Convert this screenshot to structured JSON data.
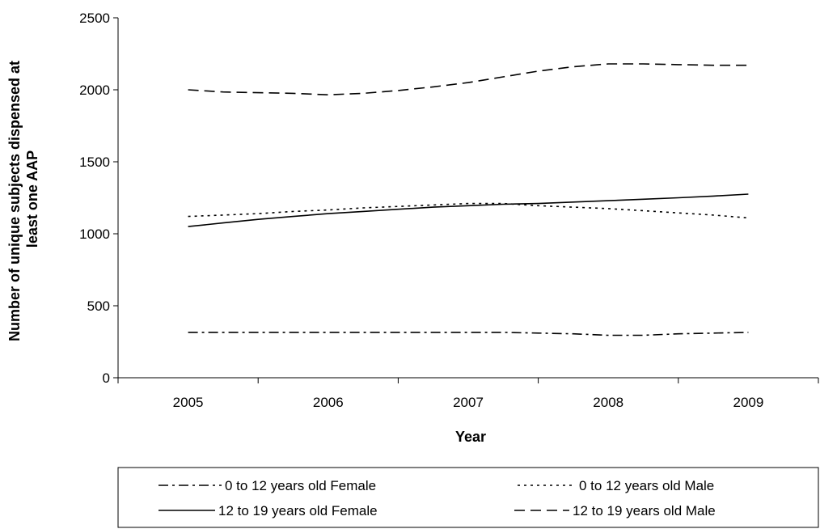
{
  "chart_data": {
    "type": "line",
    "xlabel": "Year",
    "ylabel_lines": [
      "Number of unique subjects dispensed at",
      "least one AAP"
    ],
    "categories": [
      "2005",
      "2006",
      "2007",
      "2008",
      "2009"
    ],
    "ylim": [
      0,
      2500
    ],
    "yticks": [
      0,
      500,
      1000,
      1500,
      2000,
      2500
    ],
    "grid": false,
    "legend_position": "bottom",
    "x": [
      2005,
      2005.25,
      2005.5,
      2005.75,
      2006,
      2006.25,
      2006.5,
      2006.75,
      2007,
      2007.25,
      2007.5,
      2007.75,
      2008,
      2008.25,
      2008.5,
      2008.75,
      2009
    ],
    "series": [
      {
        "name": "0 to 12 years old Female",
        "style": "dashdot",
        "values": [
          315,
          315,
          315,
          315,
          315,
          315,
          315,
          315,
          315,
          315,
          310,
          305,
          295,
          295,
          305,
          310,
          315
        ]
      },
      {
        "name": "0 to 12 years old Male",
        "style": "dotted",
        "values": [
          1120,
          1130,
          1140,
          1155,
          1165,
          1180,
          1190,
          1200,
          1210,
          1210,
          1195,
          1185,
          1175,
          1160,
          1145,
          1130,
          1110
        ]
      },
      {
        "name": "12 to 19 years old Female",
        "style": "solid",
        "values": [
          1050,
          1075,
          1100,
          1120,
          1140,
          1155,
          1170,
          1185,
          1195,
          1205,
          1210,
          1220,
          1230,
          1240,
          1250,
          1262,
          1275
        ]
      },
      {
        "name": "12 to 19 years old Male",
        "style": "dashed",
        "values": [
          2000,
          1985,
          1980,
          1975,
          1965,
          1975,
          1995,
          2020,
          2050,
          2090,
          2130,
          2160,
          2180,
          2180,
          2175,
          2170,
          2170
        ]
      }
    ]
  }
}
